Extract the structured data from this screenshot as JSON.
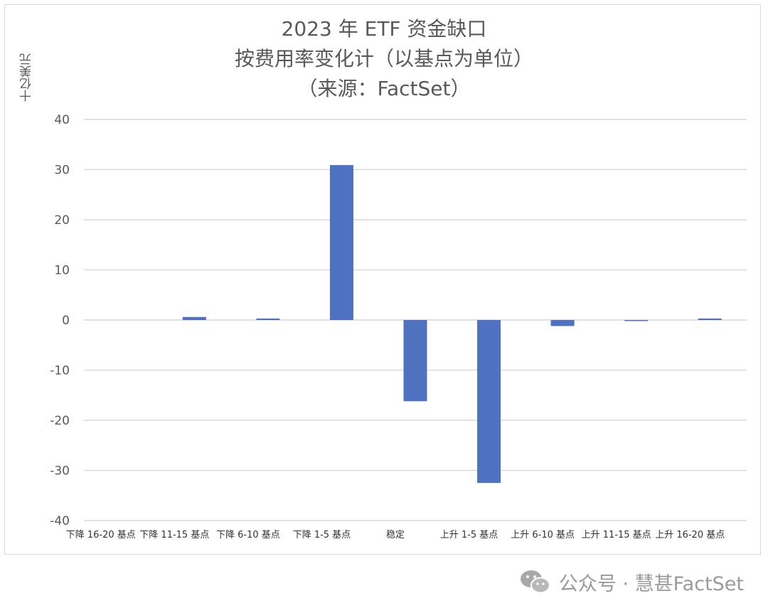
{
  "chart_data": {
    "type": "bar",
    "title_lines": [
      "2023 年 ETF 资金缺口",
      "按费用率变化计（以基点为单位）",
      "（来源：FactSet）"
    ],
    "ylabel": "十亿美元",
    "xlabel": "",
    "ylim": [
      -40,
      40
    ],
    "yticks": [
      40,
      30,
      20,
      10,
      0,
      -10,
      -20,
      -30,
      -40
    ],
    "grid": true,
    "categories": [
      "下降 16-20  基点",
      "下降 11-15  基点",
      "下降 6-10  基点",
      "下降 1-5  基点",
      "稳定",
      "上升  1-5  基点",
      "上升  6-10  基点",
      "上升  11-15  基点",
      "上升  16-20  基点"
    ],
    "values": [
      0,
      0.6,
      0.3,
      30.9,
      -16.2,
      -32.5,
      -1.2,
      -0.2,
      0.3
    ],
    "bar_color": "#4e71c0",
    "grid_color": "#d9d9d9",
    "text_color": "#595959"
  },
  "watermark": {
    "text": "公众号 · 慧甚FactSet",
    "icon": "wechat-icon"
  }
}
